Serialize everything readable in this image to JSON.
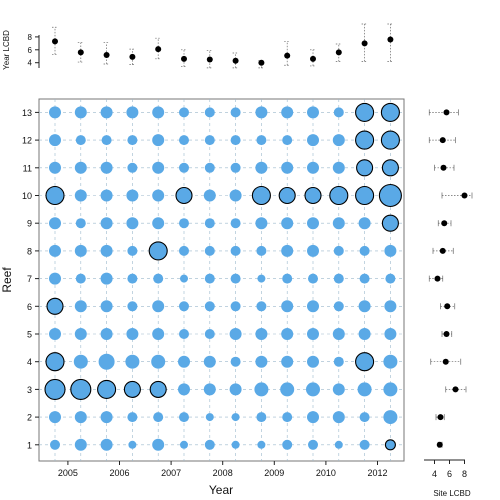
{
  "chart_data": [
    {
      "id": "main",
      "type": "scatter",
      "subtype": "bubble-grid",
      "xlabel": "Year",
      "ylabel": "Reef",
      "x_tick_labels": [
        "2005",
        "2006",
        "2007",
        "2008",
        "2009",
        "2010",
        "2012"
      ],
      "x_tick_positions": [
        1.5,
        3.5,
        5.5,
        7.5,
        9.5,
        11.5,
        13.5
      ],
      "x_range": [
        0.5,
        14.5
      ],
      "columns": 14,
      "reefs": [
        1,
        2,
        3,
        4,
        5,
        6,
        7,
        8,
        9,
        10,
        11,
        12,
        13
      ],
      "grid": true,
      "bubble_color": "#5aa9e6",
      "highlight_outline_color": "#000000",
      "cell_values": [
        [
          5,
          6,
          6,
          4,
          6,
          4,
          5,
          4,
          4,
          5,
          5,
          4,
          5,
          5
        ],
        [
          6,
          6,
          6,
          5,
          5,
          5,
          4,
          4,
          5,
          5,
          6,
          6,
          5,
          7
        ],
        [
          10,
          10,
          9,
          8,
          8,
          6,
          6,
          6,
          7,
          7,
          7,
          6,
          7,
          7
        ],
        [
          9,
          7,
          8,
          7,
          7,
          6,
          6,
          5,
          6,
          6,
          6,
          5,
          9,
          7
        ],
        [
          6,
          6,
          6,
          6,
          6,
          5,
          5,
          6,
          6,
          6,
          6,
          6,
          6,
          6
        ],
        [
          8,
          6,
          6,
          5,
          6,
          5,
          5,
          5,
          5,
          6,
          6,
          5,
          6,
          6
        ],
        [
          6,
          5,
          6,
          5,
          5,
          4,
          5,
          5,
          4,
          5,
          5,
          5,
          5,
          5
        ],
        [
          6,
          6,
          6,
          5,
          9,
          5,
          5,
          5,
          5,
          6,
          6,
          5,
          5,
          6
        ],
        [
          6,
          5,
          6,
          6,
          6,
          5,
          5,
          5,
          6,
          6,
          6,
          6,
          6,
          8
        ],
        [
          9,
          6,
          6,
          6,
          6,
          8,
          6,
          6,
          9,
          8,
          8,
          9,
          9,
          11
        ],
        [
          6,
          6,
          6,
          5,
          6,
          5,
          5,
          5,
          6,
          6,
          6,
          6,
          8,
          8
        ],
        [
          6,
          5,
          5,
          5,
          6,
          5,
          5,
          5,
          5,
          5,
          6,
          6,
          9,
          9
        ],
        [
          6,
          6,
          6,
          6,
          6,
          5,
          5,
          5,
          6,
          6,
          6,
          5,
          9,
          9
        ]
      ],
      "highlighted_cells": [
        [
          1,
          14
        ],
        [
          3,
          1
        ],
        [
          3,
          2
        ],
        [
          3,
          3
        ],
        [
          3,
          4
        ],
        [
          3,
          5
        ],
        [
          4,
          1
        ],
        [
          4,
          13
        ],
        [
          6,
          1
        ],
        [
          8,
          5
        ],
        [
          9,
          14
        ],
        [
          10,
          1
        ],
        [
          10,
          6
        ],
        [
          10,
          9
        ],
        [
          10,
          10
        ],
        [
          10,
          11
        ],
        [
          10,
          12
        ],
        [
          10,
          13
        ],
        [
          10,
          14
        ],
        [
          11,
          13
        ],
        [
          11,
          14
        ],
        [
          12,
          13
        ],
        [
          12,
          14
        ],
        [
          13,
          13
        ],
        [
          13,
          14
        ]
      ]
    },
    {
      "id": "year-lcbd",
      "type": "scatter",
      "subtype": "point-with-error",
      "ylabel": "Year LCBD",
      "y_ticks": [
        4,
        6,
        8
      ],
      "y_range": [
        3,
        10
      ],
      "x": [
        1,
        2,
        3,
        4,
        5,
        6,
        7,
        8,
        9,
        10,
        11,
        12,
        13,
        14
      ],
      "values": [
        7.3,
        5.6,
        5.2,
        4.9,
        6.1,
        4.6,
        4.5,
        4.3,
        4.0,
        5.1,
        4.6,
        5.6,
        7.0,
        7.6
      ],
      "lower": [
        5.3,
        4.1,
        3.8,
        3.7,
        4.6,
        3.4,
        3.2,
        3.2,
        3.2,
        3.6,
        3.5,
        4.2,
        4.2,
        4.2
      ],
      "upper": [
        9.5,
        7.1,
        7.1,
        6.1,
        7.8,
        6.0,
        5.9,
        5.5,
        4.3,
        7.3,
        6.0,
        6.9,
        10.0,
        10.0
      ],
      "marker_color": "#000000"
    },
    {
      "id": "site-lcbd",
      "type": "scatter",
      "subtype": "point-with-error",
      "xlabel": "Site LCBD",
      "x_ticks": [
        4,
        6,
        8
      ],
      "x_range": [
        3,
        9
      ],
      "reefs": [
        1,
        2,
        3,
        4,
        5,
        6,
        7,
        8,
        9,
        10,
        11,
        12,
        13
      ],
      "values": [
        4.7,
        4.8,
        6.8,
        5.5,
        5.6,
        5.7,
        4.4,
        5.1,
        5.3,
        8.0,
        5.2,
        5.1,
        5.6
      ],
      "lower": [
        4.5,
        4.2,
        5.5,
        3.5,
        5.0,
        4.8,
        3.3,
        3.8,
        4.5,
        5.0,
        4.0,
        3.3,
        3.3
      ],
      "upper": [
        5.0,
        5.3,
        8.2,
        7.5,
        6.3,
        6.7,
        5.1,
        6.5,
        6.2,
        9.0,
        6.6,
        6.8,
        7.2
      ],
      "marker_color": "#000000"
    }
  ]
}
